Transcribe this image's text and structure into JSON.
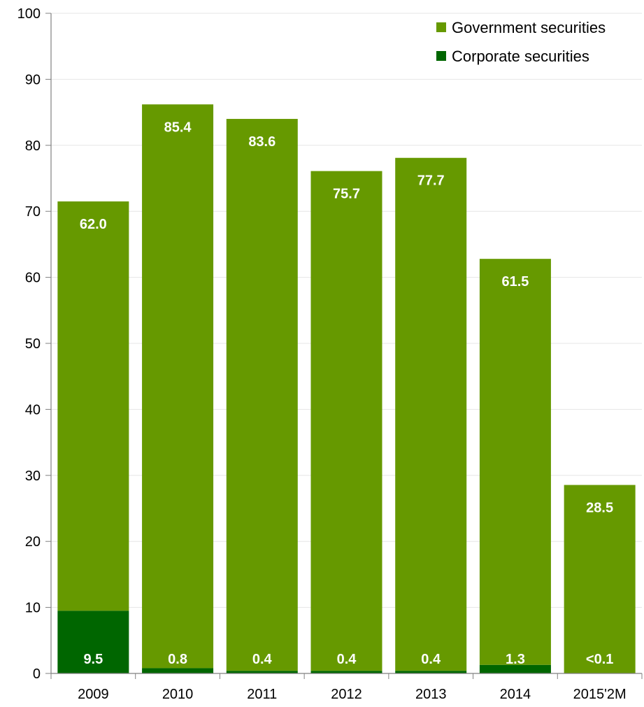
{
  "chart_data": {
    "type": "bar",
    "stacked": true,
    "categories": [
      "2009",
      "2010",
      "2011",
      "2012",
      "2013",
      "2014",
      "2015'2M"
    ],
    "series": [
      {
        "name": "Corporate securities",
        "color": "#006600",
        "values": [
          9.5,
          0.8,
          0.4,
          0.4,
          0.4,
          1.3,
          0.05
        ],
        "labels": [
          "9.5",
          "0.8",
          "0.4",
          "0.4",
          "0.4",
          "1.3",
          "<0.1"
        ]
      },
      {
        "name": "Government securities",
        "color": "#669900",
        "values": [
          62.0,
          85.4,
          83.6,
          75.7,
          77.7,
          61.5,
          28.5
        ],
        "labels": [
          "62.0",
          "85.4",
          "83.6",
          "75.7",
          "77.7",
          "61.5",
          "28.5"
        ]
      }
    ],
    "ylim": [
      0,
      100
    ],
    "yticks": [
      "0",
      "10",
      "20",
      "30",
      "40",
      "50",
      "60",
      "70",
      "80",
      "90",
      "100"
    ],
    "grid": true,
    "legend_position": "top-right",
    "legend_order": [
      "Government securities",
      "Corporate securities"
    ],
    "title": "",
    "xlabel": "",
    "ylabel": ""
  }
}
